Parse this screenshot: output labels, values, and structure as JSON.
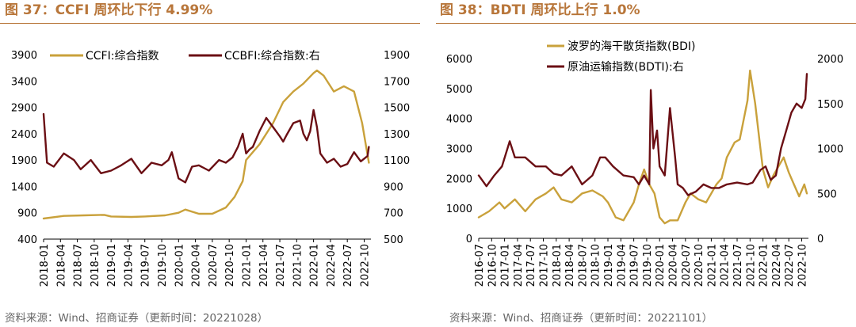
{
  "colors": {
    "gold": "#c9a13b",
    "maroon": "#6b0f14",
    "title": "#b8763a"
  },
  "chart_data": [
    {
      "type": "line",
      "title": "图 37：CCFI 周环比下行 4.99%",
      "source": "资料来源：Wind、招商证券（更新时间：20221028）",
      "left_axis": {
        "ylim": [
          400,
          3900
        ],
        "ticks": [
          "3900",
          "3400",
          "2900",
          "2400",
          "1900",
          "1400",
          "900",
          "400"
        ]
      },
      "right_axis": {
        "ylim": [
          500,
          1900
        ],
        "ticks": [
          "1900",
          "1700",
          "1500",
          "1300",
          "1100",
          "900",
          "700",
          "500"
        ]
      },
      "x_ticks": [
        "2018-01",
        "2018-04",
        "2018-07",
        "2018-10",
        "2019-01",
        "2019-04",
        "2019-07",
        "2019-10",
        "2020-01",
        "2020-04",
        "2020-07",
        "2020-10",
        "2021-01",
        "2021-04",
        "2021-07",
        "2021-10",
        "2022-01",
        "2022-04",
        "2022-07",
        "2022-10"
      ],
      "series": [
        {
          "name": "CCFI:综合指数",
          "axis": "left",
          "color": "gold",
          "x": [
            2018.0,
            2018.3,
            2018.6,
            2018.9,
            2019.0,
            2019.3,
            2019.5,
            2019.8,
            2020.0,
            2020.1,
            2020.3,
            2020.5,
            2020.7,
            2020.83,
            2020.95,
            2021.0,
            2021.2,
            2021.4,
            2021.55,
            2021.7,
            2021.85,
            2022.0,
            2022.05,
            2022.15,
            2022.3,
            2022.45,
            2022.6,
            2022.72,
            2022.82
          ],
          "values": [
            790,
            840,
            850,
            860,
            830,
            820,
            830,
            850,
            900,
            960,
            880,
            880,
            1000,
            1200,
            1500,
            1900,
            2200,
            2600,
            3000,
            3200,
            3350,
            3550,
            3600,
            3500,
            3200,
            3300,
            3200,
            2600,
            1850
          ]
        },
        {
          "name": "CCBFI:综合指数:右",
          "axis": "right",
          "color": "maroon",
          "x": [
            2018.0,
            2018.05,
            2018.15,
            2018.3,
            2018.45,
            2018.55,
            2018.7,
            2018.85,
            2019.0,
            2019.15,
            2019.3,
            2019.45,
            2019.6,
            2019.75,
            2019.85,
            2019.9,
            2020.0,
            2020.1,
            2020.2,
            2020.3,
            2020.45,
            2020.6,
            2020.7,
            2020.8,
            2020.88,
            2020.95,
            2021.0,
            2021.05,
            2021.1,
            2021.2,
            2021.3,
            2021.4,
            2021.5,
            2021.55,
            2021.6,
            2021.7,
            2021.8,
            2021.85,
            2021.9,
            2021.95,
            2022.0,
            2022.05,
            2022.1,
            2022.2,
            2022.3,
            2022.4,
            2022.5,
            2022.6,
            2022.7,
            2022.8,
            2022.82
          ],
          "values": [
            1450,
            1080,
            1050,
            1150,
            1100,
            1030,
            1100,
            1000,
            1020,
            1060,
            1110,
            1000,
            1080,
            1060,
            1100,
            1160,
            960,
            930,
            1050,
            1060,
            1020,
            1100,
            1080,
            1120,
            1200,
            1300,
            1150,
            1180,
            1200,
            1320,
            1420,
            1350,
            1280,
            1240,
            1290,
            1380,
            1400,
            1300,
            1250,
            1320,
            1480,
            1350,
            1150,
            1080,
            1110,
            1050,
            1070,
            1160,
            1090,
            1130,
            1200
          ]
        }
      ]
    },
    {
      "type": "line",
      "title": "图 38：BDTI 周环比上行 1.0%",
      "source": "资料来源：Wind、招商证券（更新时间：20221101）",
      "left_axis": {
        "ylim": [
          0,
          6000
        ],
        "ticks": [
          "6000",
          "5000",
          "4000",
          "3000",
          "2000",
          "1000",
          "0"
        ]
      },
      "right_axis": {
        "ylim": [
          0,
          2000
        ],
        "ticks": [
          "2000",
          "1500",
          "1000",
          "500",
          "0"
        ]
      },
      "x_ticks": [
        "2016-07",
        "2016-10",
        "2017-01",
        "2017-04",
        "2017-07",
        "2017-10",
        "2018-01",
        "2018-04",
        "2018-07",
        "2018-10",
        "2019-01",
        "2019-04",
        "2019-07",
        "2019-10",
        "2020-01",
        "2020-04",
        "2020-07",
        "2020-10",
        "2021-01",
        "2021-04",
        "2021-07",
        "2021-10",
        "2022-01",
        "2022-04",
        "2022-07",
        "2022-10"
      ],
      "series": [
        {
          "name": "波罗的海干散货指数(BDI)",
          "axis": "left",
          "color": "gold",
          "x": [
            2016.5,
            2016.7,
            2016.9,
            2017.0,
            2017.2,
            2017.4,
            2017.6,
            2017.8,
            2017.95,
            2018.1,
            2018.3,
            2018.5,
            2018.7,
            2018.9,
            2019.0,
            2019.15,
            2019.3,
            2019.5,
            2019.6,
            2019.7,
            2019.8,
            2019.9,
            2020.0,
            2020.1,
            2020.2,
            2020.35,
            2020.5,
            2020.6,
            2020.75,
            2020.9,
            2021.0,
            2021.1,
            2021.2,
            2021.3,
            2021.45,
            2021.55,
            2021.7,
            2021.75,
            2021.85,
            2021.95,
            2022.0,
            2022.1,
            2022.2,
            2022.3,
            2022.4,
            2022.5,
            2022.6,
            2022.7,
            2022.8,
            2022.85
          ],
          "values": [
            700,
            900,
            1200,
            1000,
            1300,
            900,
            1300,
            1500,
            1700,
            1300,
            1200,
            1500,
            1600,
            1400,
            1200,
            700,
            600,
            1200,
            1800,
            2300,
            1800,
            1500,
            700,
            500,
            600,
            600,
            1200,
            1500,
            1300,
            1200,
            1500,
            1800,
            2000,
            2700,
            3200,
            3300,
            4600,
            5600,
            4500,
            3000,
            2300,
            1700,
            2100,
            2400,
            2700,
            2200,
            1800,
            1400,
            1800,
            1500
          ]
        },
        {
          "name": "原油运输指数(BDTI):右",
          "axis": "right",
          "color": "maroon",
          "x": [
            2016.5,
            2016.65,
            2016.8,
            2016.95,
            2017.1,
            2017.2,
            2017.4,
            2017.6,
            2017.8,
            2017.95,
            2018.1,
            2018.3,
            2018.5,
            2018.7,
            2018.85,
            2018.95,
            2019.1,
            2019.3,
            2019.5,
            2019.6,
            2019.7,
            2019.8,
            2019.83,
            2019.88,
            2019.95,
            2020.0,
            2020.1,
            2020.2,
            2020.3,
            2020.35,
            2020.45,
            2020.55,
            2020.7,
            2020.85,
            2021.0,
            2021.15,
            2021.3,
            2021.5,
            2021.7,
            2021.8,
            2021.95,
            2022.05,
            2022.15,
            2022.25,
            2022.35,
            2022.45,
            2022.55,
            2022.65,
            2022.75,
            2022.82,
            2022.85
          ],
          "values": [
            700,
            580,
            700,
            800,
            1080,
            900,
            900,
            800,
            800,
            720,
            700,
            800,
            600,
            700,
            900,
            900,
            800,
            700,
            680,
            600,
            700,
            600,
            1650,
            1000,
            1200,
            800,
            700,
            1450,
            900,
            600,
            560,
            480,
            520,
            600,
            560,
            560,
            600,
            620,
            600,
            620,
            760,
            800,
            650,
            700,
            1000,
            1200,
            1400,
            1500,
            1450,
            1550,
            1830
          ]
        }
      ]
    }
  ],
  "legend_left": [
    {
      "label": "CCFI:综合指数",
      "color": "gold"
    },
    {
      "label": "CCBFI:综合指数:右",
      "color": "maroon"
    }
  ],
  "legend_right": [
    {
      "label": "波罗的海干散货指数(BDI)",
      "color": "gold"
    },
    {
      "label": "原油运输指数(BDTI):右",
      "color": "maroon"
    }
  ]
}
